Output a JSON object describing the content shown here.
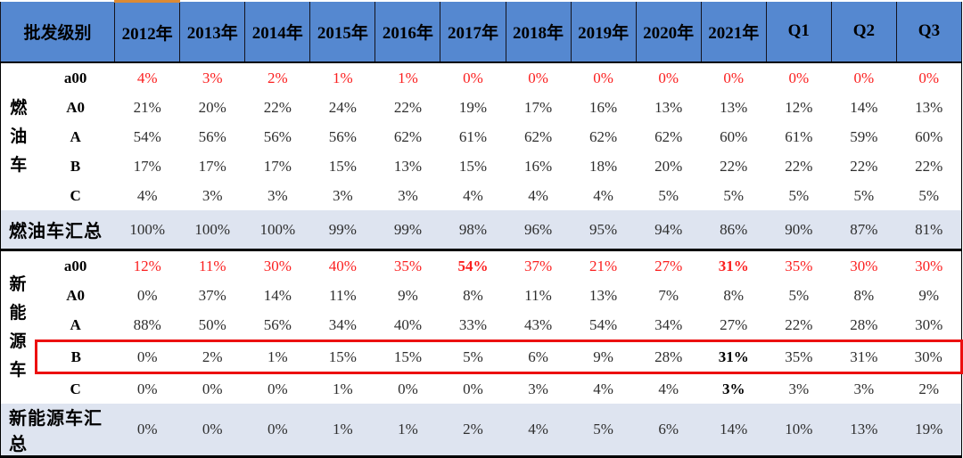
{
  "chart_data": {
    "type": "table",
    "corner_header": "批发级别",
    "columns": [
      "2012年",
      "2013年",
      "2014年",
      "2015年",
      "2016年",
      "2017年",
      "2018年",
      "2019年",
      "2020年",
      "2021年",
      "Q1",
      "Q2",
      "Q3"
    ],
    "sections": [
      {
        "group": "燃油车",
        "rows": [
          {
            "level": "a00",
            "red": true,
            "values": [
              "4%",
              "3%",
              "2%",
              "1%",
              "1%",
              "0%",
              "0%",
              "0%",
              "0%",
              "0%",
              "0%",
              "0%",
              "0%"
            ]
          },
          {
            "level": "A0",
            "values": [
              "21%",
              "20%",
              "22%",
              "24%",
              "22%",
              "19%",
              "17%",
              "16%",
              "13%",
              "13%",
              "12%",
              "14%",
              "13%"
            ]
          },
          {
            "level": "A",
            "values": [
              "54%",
              "56%",
              "56%",
              "56%",
              "62%",
              "61%",
              "62%",
              "62%",
              "62%",
              "60%",
              "61%",
              "59%",
              "60%"
            ]
          },
          {
            "level": "B",
            "values": [
              "17%",
              "17%",
              "17%",
              "15%",
              "13%",
              "15%",
              "16%",
              "18%",
              "20%",
              "22%",
              "22%",
              "22%",
              "22%"
            ]
          },
          {
            "level": "C",
            "values": [
              "4%",
              "3%",
              "3%",
              "3%",
              "3%",
              "4%",
              "4%",
              "4%",
              "5%",
              "5%",
              "5%",
              "5%",
              "5%"
            ]
          }
        ],
        "summary": {
          "label": "燃油车汇总",
          "values": [
            "100%",
            "100%",
            "100%",
            "99%",
            "99%",
            "98%",
            "96%",
            "95%",
            "94%",
            "86%",
            "90%",
            "87%",
            "81%"
          ]
        }
      },
      {
        "group": "新能源车",
        "rows": [
          {
            "level": "a00",
            "red": true,
            "bold_cols": [
              5,
              9
            ],
            "values": [
              "12%",
              "11%",
              "30%",
              "40%",
              "35%",
              "54%",
              "37%",
              "21%",
              "27%",
              "31%",
              "35%",
              "30%",
              "30%"
            ]
          },
          {
            "level": "A0",
            "values": [
              "0%",
              "37%",
              "14%",
              "11%",
              "9%",
              "8%",
              "11%",
              "13%",
              "7%",
              "8%",
              "5%",
              "8%",
              "9%"
            ]
          },
          {
            "level": "A",
            "values": [
              "88%",
              "50%",
              "56%",
              "34%",
              "40%",
              "33%",
              "43%",
              "54%",
              "34%",
              "27%",
              "22%",
              "28%",
              "30%"
            ]
          },
          {
            "level": "B",
            "highlighted": true,
            "bold_cols": [
              9
            ],
            "values": [
              "0%",
              "2%",
              "1%",
              "15%",
              "15%",
              "5%",
              "6%",
              "9%",
              "28%",
              "31%",
              "35%",
              "31%",
              "30%"
            ]
          },
          {
            "level": "C",
            "bold_cols": [
              9
            ],
            "values": [
              "0%",
              "0%",
              "0%",
              "1%",
              "0%",
              "0%",
              "3%",
              "4%",
              "4%",
              "3%",
              "3%",
              "3%",
              "2%"
            ]
          }
        ],
        "summary": {
          "label": "新能源车汇总",
          "values": [
            "0%",
            "0%",
            "0%",
            "1%",
            "1%",
            "2%",
            "4%",
            "5%",
            "6%",
            "14%",
            "10%",
            "13%",
            "19%"
          ]
        }
      }
    ]
  },
  "colors": {
    "header_bg": "#5588D0",
    "summary_bg": "#DEE4F0",
    "red_text": "#FB2020",
    "highlight_box": "#EC1010",
    "orange_marker": "#DD8A33"
  }
}
